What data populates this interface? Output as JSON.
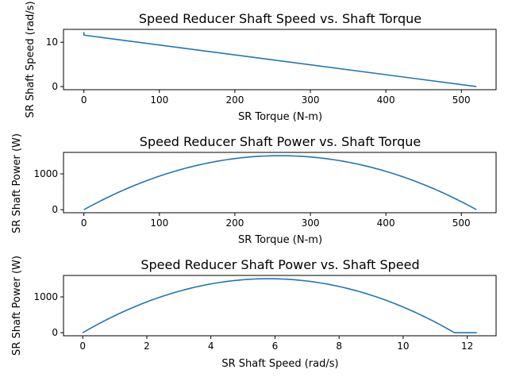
{
  "chart_data": [
    {
      "type": "line",
      "title": "Speed Reducer Shaft Speed vs. Shaft Torque",
      "xlabel": "SR Torque (N-m)",
      "ylabel": "SR Shaft Speed (rad/s)",
      "xlim": [
        -27,
        546
      ],
      "ylim": [
        -0.7,
        12.9
      ],
      "xticks": [
        0,
        100,
        200,
        300,
        400,
        500
      ],
      "yticks": [
        0,
        10
      ],
      "grid": false,
      "color": "#1f77b4",
      "series": [
        {
          "x": [
            0,
            0,
            520
          ],
          "y": [
            12.3,
            11.6,
            0
          ]
        }
      ]
    },
    {
      "type": "line",
      "title": "Speed Reducer Shaft Power vs. Shaft Torque",
      "xlabel": "SR Torque (N-m)",
      "ylabel": "SR Shaft Power (W)",
      "xlim": [
        -27,
        546
      ],
      "ylim": [
        -85,
        1600
      ],
      "xticks": [
        0,
        100,
        200,
        300,
        400,
        500
      ],
      "yticks": [
        0,
        1000
      ],
      "grid": false,
      "color": "#1f77b4",
      "series": [
        {
          "curve": "torque_power",
          "x_max": 520,
          "peak_x": 260,
          "peak_y": 1508
        }
      ]
    },
    {
      "type": "line",
      "title": "Speed Reducer Shaft Power vs. Shaft Speed",
      "xlabel": "SR Shaft Speed (rad/s)",
      "ylabel": "SR Shaft Power (W)",
      "xlim": [
        -0.6,
        12.9
      ],
      "ylim": [
        -85,
        1600
      ],
      "xticks": [
        0,
        2,
        4,
        6,
        8,
        10,
        12
      ],
      "yticks": [
        0,
        1000
      ],
      "grid": false,
      "color": "#1f77b4",
      "series": [
        {
          "curve": "speed_power",
          "x_max": 11.6,
          "peak_x": 5.8,
          "peak_y": 1508,
          "tail_x": [
            11.6,
            12.3
          ],
          "tail_y": [
            0,
            0
          ]
        }
      ]
    }
  ]
}
